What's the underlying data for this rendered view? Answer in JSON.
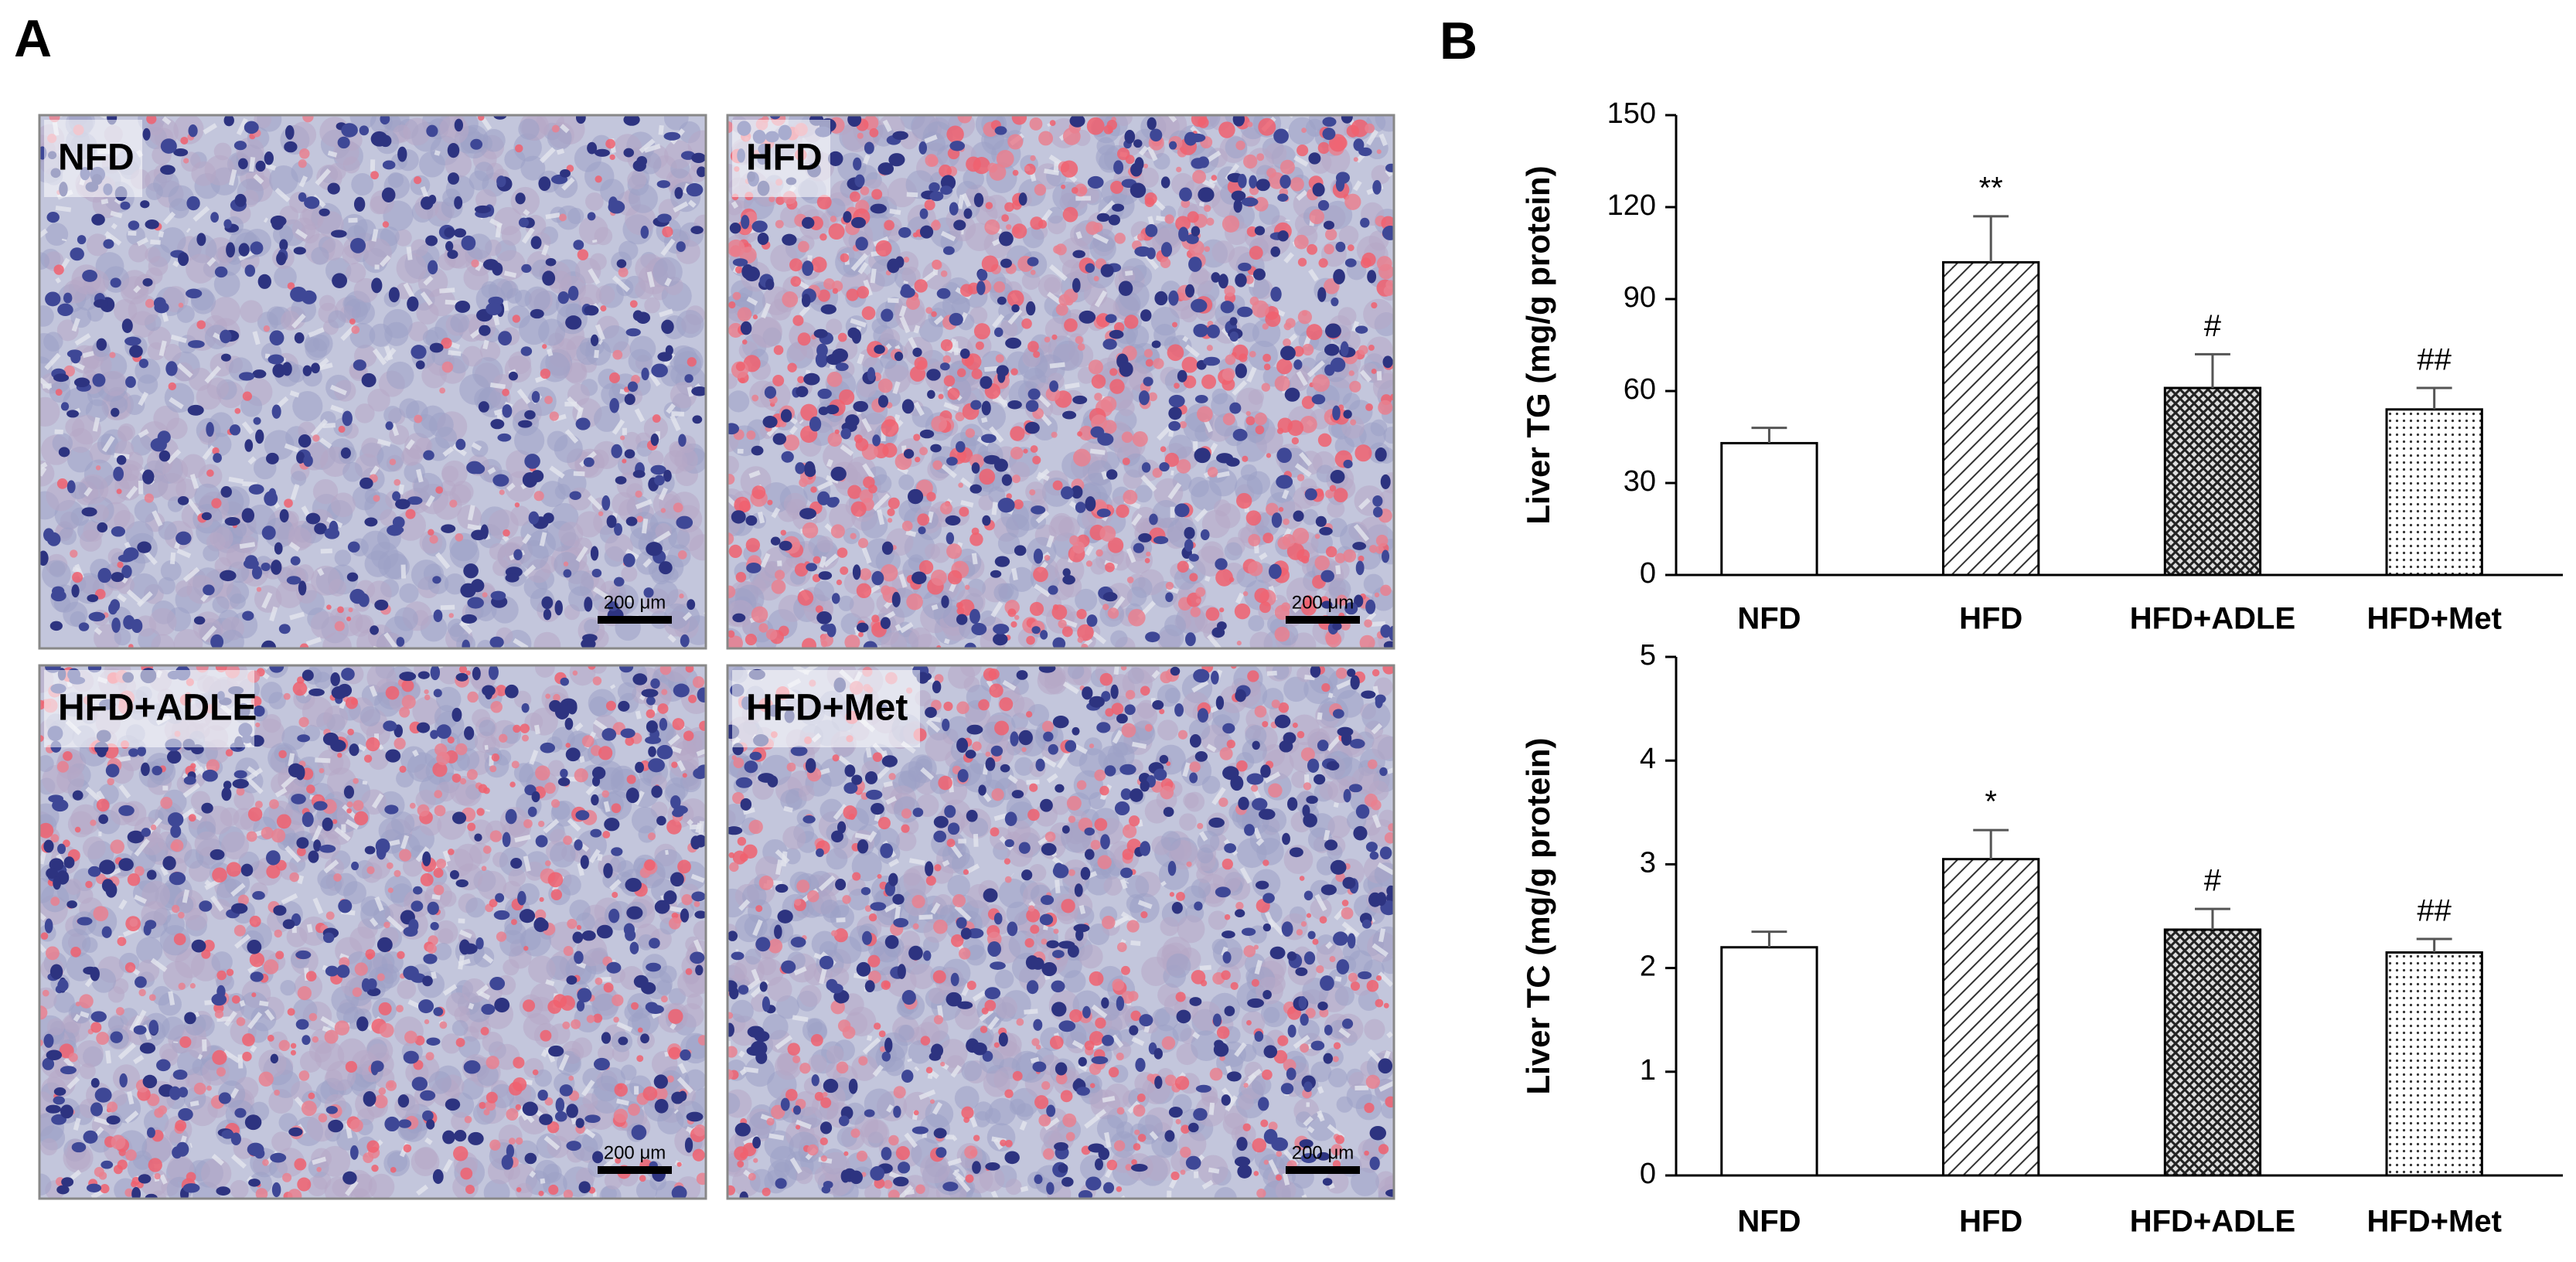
{
  "panel_labels": [
    "A",
    "B"
  ],
  "micrographs": [
    {
      "label": "NFD",
      "scale_bar": "200 μm"
    },
    {
      "label": "HFD",
      "scale_bar": "200 μm"
    },
    {
      "label": "HFD+ADLE",
      "scale_bar": "200 μm"
    },
    {
      "label": "HFD+Met",
      "scale_bar": "200 μm"
    }
  ],
  "chart_data": [
    {
      "type": "bar",
      "y_label": "Liver TG (mg/g protein)",
      "categories": [
        "NFD",
        "HFD",
        "HFD+ADLE",
        "HFD+Met"
      ],
      "values": [
        43,
        102,
        61,
        54
      ],
      "errors": [
        5,
        15,
        11,
        7
      ],
      "annotations": [
        null,
        "**",
        "#",
        "##"
      ],
      "ylim": [
        0,
        150
      ],
      "yticks": [
        0,
        30,
        60,
        90,
        120,
        150
      ],
      "grid": false
    },
    {
      "type": "bar",
      "y_label": "Liver TC (mg/g protein)",
      "categories": [
        "NFD",
        "HFD",
        "HFD+ADLE",
        "HFD+Met"
      ],
      "values": [
        2.2,
        3.05,
        2.37,
        2.15
      ],
      "errors": [
        0.15,
        0.28,
        0.2,
        0.13
      ],
      "annotations": [
        null,
        "*",
        "#",
        "##"
      ],
      "ylim": [
        0,
        5
      ],
      "yticks": [
        0,
        1,
        2,
        3,
        4,
        5
      ],
      "grid": false
    }
  ]
}
